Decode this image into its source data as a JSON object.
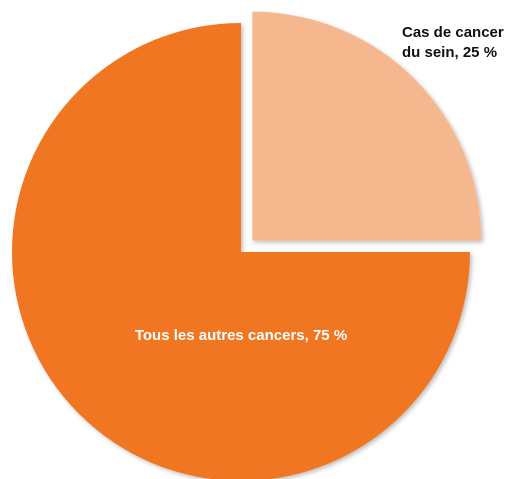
{
  "chart_data": {
    "type": "pie",
    "title": "",
    "slices": [
      {
        "label_lines": [
          "Cas de cancer",
          "du sein, 25 %"
        ],
        "value": 25,
        "color": "#f5b88e",
        "exploded": true
      },
      {
        "label_lines": [
          "Tous les autres cancers, 75 %"
        ],
        "value": 75,
        "color": "#f07623",
        "exploded": false
      }
    ]
  }
}
